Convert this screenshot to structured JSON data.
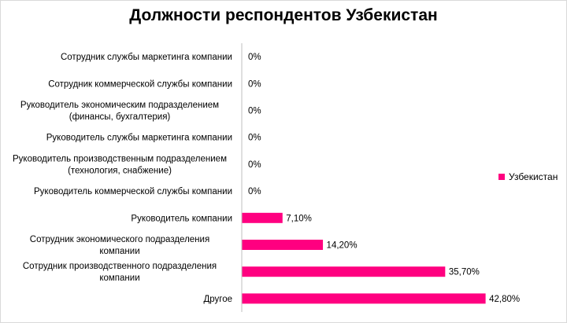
{
  "chart_data": {
    "type": "bar",
    "orientation": "horizontal",
    "title": "Должности респондентов Узбекистан",
    "categories": [
      "Сотрудник службы маркетинга компании",
      "Сотрудник коммерческой службы компании",
      "Руководитель экономическим подразделением (финансы, бухгалтерия)",
      "Руководитель службы маркетинга компании",
      "Руководитель производственным подразделением (технология, снабжение)",
      "Руководитель коммерческой службы компании",
      "Руководитель компании",
      "Сотрудник экономического подразделения компании",
      "Сотрудник производственного подразделения компании",
      "Другое"
    ],
    "category_lines": [
      [
        "Сотрудник службы маркетинга компании"
      ],
      [
        "Сотрудник коммерческой службы компании"
      ],
      [
        "Руководитель экономическим подразделением",
        "(финансы, бухгалтерия)"
      ],
      [
        "Руководитель службы маркетинга компании"
      ],
      [
        "Руководитель производственным подразделением",
        "(технология, снабжение)"
      ],
      [
        "Руководитель коммерческой службы компании"
      ],
      [
        "Руководитель компании"
      ],
      [
        "Сотрудник экономического подразделения",
        "компании"
      ],
      [
        "Сотрудник производственного подразделения",
        "компании"
      ],
      [
        "Другое"
      ]
    ],
    "series": [
      {
        "name": "Узбекистан",
        "values": [
          0,
          0,
          0,
          0,
          0,
          0,
          7.1,
          14.2,
          35.7,
          42.8
        ],
        "labels": [
          "0%",
          "0%",
          "0%",
          "0%",
          "0%",
          "0%",
          "7,10%",
          "14,20%",
          "35,70%",
          "42,80%"
        ]
      }
    ],
    "xlim": [
      0,
      45
    ],
    "grid": false,
    "legend_position": "right",
    "bar_color": "#ff0080"
  }
}
